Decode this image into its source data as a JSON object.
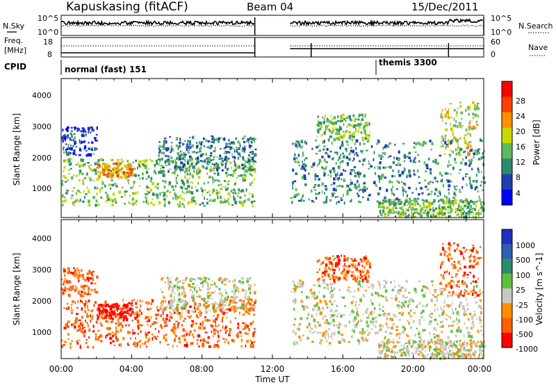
{
  "header": {
    "station": "Kapuskasing (fitACF)",
    "beam": "Beam 04",
    "date": "15/Dec/2011"
  },
  "top_panels": {
    "nsky_label": "N.Sky",
    "nsky_ticks": [
      "10^5",
      "10^0"
    ],
    "nsearch_label": "N.Search",
    "nsearch_ticks": [
      "10^5",
      "10^0"
    ],
    "freq_label": "Freq.",
    "freq_unit": "[MHz]",
    "freq_ticks": [
      "18",
      "8"
    ],
    "nave_label": "Nave",
    "nave_ticks": [
      "60",
      "0"
    ],
    "cpid_label": "CPID",
    "cpid_modes": [
      {
        "name": "normal (fast) 151",
        "start_hour": 0,
        "end_hour": 18
      },
      {
        "name": "themis 3300",
        "start_hour": 18,
        "end_hour": 24
      }
    ]
  },
  "x_axis": {
    "label": "Time UT",
    "ticks": [
      "00:00",
      "04:00",
      "08:00",
      "12:00",
      "16:00",
      "20:00",
      "00:00"
    ],
    "range_hours": [
      0,
      24
    ]
  },
  "power_panel": {
    "ylabel": "Slant Range [km]",
    "yticks": [
      "1000",
      "2000",
      "3000",
      "4000"
    ],
    "colorbar_label": "Power [dB]",
    "colorbar_ticks": [
      "4",
      "8",
      "12",
      "16",
      "20",
      "24",
      "28"
    ],
    "colors": [
      "#0000ff",
      "#1f3fb0",
      "#2e8a6e",
      "#5fb95f",
      "#c8d800",
      "#ff9000",
      "#ff4000",
      "#ff0000"
    ]
  },
  "velocity_panel": {
    "ylabel": "Slant Range [km]",
    "yticks": [
      "1000",
      "2000",
      "3000",
      "4000"
    ],
    "colorbar_label": "Velocity [m s^-1]",
    "colorbar_ticks": [
      "1000",
      "500",
      "100",
      "25",
      "-25",
      "-100",
      "-500",
      "-1000"
    ],
    "colors": [
      "#2030c0",
      "#3060b0",
      "#2e8a6e",
      "#5fc040",
      "#c8c8c0",
      "#ff9000",
      "#ff6000",
      "#ff0000"
    ]
  },
  "chart_data": {
    "type": "heatmap",
    "x_unit": "hours UT",
    "y_unit": "km",
    "ylim": [
      200,
      4600
    ],
    "data_gaps_hours": [
      [
        11.0,
        13.0
      ]
    ],
    "echo_regions": [
      {
        "t0": 0.0,
        "t1": 11.0,
        "r0": 600,
        "r1": 2100,
        "power_dB": 12,
        "velocity": -300
      },
      {
        "t0": 2.0,
        "t1": 4.0,
        "r0": 1500,
        "r1": 1950,
        "power_dB": 22,
        "velocity": -500
      },
      {
        "t0": 5.5,
        "t1": 11.0,
        "r0": 1700,
        "r1": 2800,
        "power_dB": 10,
        "velocity": 0
      },
      {
        "t0": 0.0,
        "t1": 2.0,
        "r0": 2200,
        "r1": 3100,
        "power_dB": 5,
        "velocity": -100
      },
      {
        "t0": 13.0,
        "t1": 24.0,
        "r0": 700,
        "r1": 2700,
        "power_dB": 9,
        "velocity": 0
      },
      {
        "t0": 14.5,
        "t1": 17.5,
        "r0": 2700,
        "r1": 3500,
        "power_dB": 14,
        "velocity": -300
      },
      {
        "t0": 18.0,
        "t1": 24.0,
        "r0": 250,
        "r1": 800,
        "power_dB": 12,
        "velocity": 0
      },
      {
        "t0": 21.5,
        "t1": 23.8,
        "r0": 2200,
        "r1": 3900,
        "power_dB": 16,
        "velocity": -200
      }
    ]
  }
}
